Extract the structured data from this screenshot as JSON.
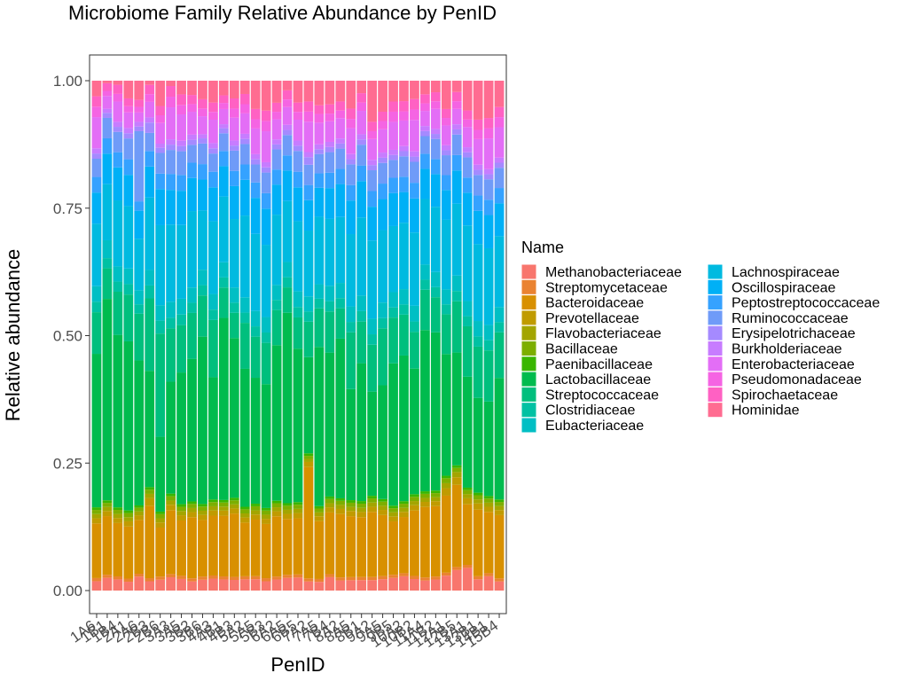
{
  "chart_data": {
    "type": "bar",
    "stacked": true,
    "title": "Microbiome Family Relative Abundance by PenID",
    "xlabel": "PenID",
    "ylabel": "Relative abundance",
    "ylim": [
      0,
      1
    ],
    "yticks": [
      "0.00",
      "0.25",
      "0.50",
      "0.75",
      "1.00"
    ],
    "grid": false,
    "legend": {
      "title": "Name",
      "placement": "right",
      "columns": 2
    },
    "categories": [
      "1A6",
      "1B1",
      "1B4",
      "2A1",
      "2A6",
      "2B3",
      "2B6",
      "3A3",
      "3A5",
      "3B2",
      "3B6",
      "4A3",
      "4B1",
      "4B3",
      "5A2",
      "5A5",
      "5B3",
      "6A2",
      "6A5",
      "6B5",
      "7A2",
      "7A5",
      "7B4",
      "8A2",
      "8A5",
      "8B1",
      "9A2",
      "9A5",
      "9B5",
      "10A2",
      "10B2",
      "11A4",
      "11B2",
      "12A1",
      "12B5",
      "13A1",
      "13B1",
      "14B1",
      "15B4"
    ],
    "series": [
      {
        "name": "Methanobacteriaceae",
        "color": "#F8766D",
        "values": [
          0.018,
          0.025,
          0.022,
          0.017,
          0.03,
          0.018,
          0.021,
          0.025,
          0.022,
          0.018,
          0.021,
          0.023,
          0.022,
          0.021,
          0.022,
          0.022,
          0.018,
          0.022,
          0.025,
          0.025,
          0.018,
          0.018,
          0.026,
          0.02,
          0.02,
          0.02,
          0.02,
          0.022,
          0.025,
          0.028,
          0.022,
          0.02,
          0.022,
          0.03,
          0.04,
          0.045,
          0.022,
          0.028,
          0.018
        ]
      },
      {
        "name": "Streptomycetaceae",
        "color": "#EA8331",
        "values": [
          0.006,
          0.006,
          0.006,
          0.006,
          0.006,
          0.006,
          0.006,
          0.006,
          0.006,
          0.006,
          0.006,
          0.006,
          0.006,
          0.006,
          0.006,
          0.006,
          0.006,
          0.006,
          0.006,
          0.006,
          0.006,
          0.006,
          0.006,
          0.006,
          0.006,
          0.006,
          0.006,
          0.006,
          0.006,
          0.006,
          0.006,
          0.006,
          0.006,
          0.006,
          0.006,
          0.006,
          0.006,
          0.006,
          0.006
        ]
      },
      {
        "name": "Bacteroidaceae",
        "color": "#D89000",
        "values": [
          0.105,
          0.115,
          0.105,
          0.1,
          0.115,
          0.14,
          0.095,
          0.12,
          0.105,
          0.12,
          0.11,
          0.115,
          0.12,
          0.125,
          0.105,
          0.11,
          0.105,
          0.12,
          0.11,
          0.108,
          0.22,
          0.12,
          0.12,
          0.125,
          0.118,
          0.115,
          0.125,
          0.118,
          0.105,
          0.11,
          0.125,
          0.14,
          0.14,
          0.155,
          0.16,
          0.12,
          0.13,
          0.12,
          0.125
        ]
      },
      {
        "name": "Prevotellaceae",
        "color": "#C09B00",
        "values": [
          0.01,
          0.01,
          0.01,
          0.01,
          0.01,
          0.015,
          0.01,
          0.01,
          0.01,
          0.01,
          0.01,
          0.01,
          0.01,
          0.01,
          0.01,
          0.01,
          0.01,
          0.01,
          0.01,
          0.01,
          0.01,
          0.01,
          0.01,
          0.01,
          0.01,
          0.01,
          0.01,
          0.01,
          0.01,
          0.01,
          0.01,
          0.01,
          0.01,
          0.015,
          0.015,
          0.012,
          0.012,
          0.01,
          0.01
        ]
      },
      {
        "name": "Flavobacteriaceae",
        "color": "#A3A500",
        "values": [
          0.008,
          0.008,
          0.008,
          0.008,
          0.008,
          0.008,
          0.008,
          0.008,
          0.008,
          0.008,
          0.008,
          0.008,
          0.008,
          0.008,
          0.008,
          0.008,
          0.008,
          0.008,
          0.008,
          0.008,
          0.006,
          0.008,
          0.008,
          0.008,
          0.008,
          0.008,
          0.008,
          0.008,
          0.008,
          0.008,
          0.008,
          0.008,
          0.008,
          0.01,
          0.01,
          0.008,
          0.008,
          0.008,
          0.008
        ]
      },
      {
        "name": "Bacillaceae",
        "color": "#7CAE00",
        "values": [
          0.008,
          0.008,
          0.008,
          0.008,
          0.008,
          0.008,
          0.008,
          0.008,
          0.008,
          0.008,
          0.008,
          0.008,
          0.008,
          0.008,
          0.008,
          0.008,
          0.008,
          0.008,
          0.008,
          0.008,
          0.006,
          0.008,
          0.008,
          0.008,
          0.008,
          0.008,
          0.008,
          0.008,
          0.008,
          0.008,
          0.008,
          0.008,
          0.008,
          0.01,
          0.008,
          0.008,
          0.008,
          0.008,
          0.008
        ]
      },
      {
        "name": "Paenibacillaceae",
        "color": "#39B600",
        "values": [
          0.005,
          0.005,
          0.005,
          0.005,
          0.005,
          0.005,
          0.005,
          0.005,
          0.005,
          0.005,
          0.005,
          0.005,
          0.005,
          0.005,
          0.005,
          0.005,
          0.005,
          0.005,
          0.005,
          0.005,
          0.005,
          0.005,
          0.005,
          0.005,
          0.005,
          0.005,
          0.005,
          0.005,
          0.005,
          0.005,
          0.005,
          0.005,
          0.005,
          0.005,
          0.005,
          0.005,
          0.005,
          0.005,
          0.005
        ]
      },
      {
        "name": "Lactobacillaceae",
        "color": "#00BB4E",
        "values": [
          0.295,
          0.395,
          0.34,
          0.325,
          0.31,
          0.225,
          0.145,
          0.21,
          0.25,
          0.28,
          0.325,
          0.235,
          0.36,
          0.315,
          0.27,
          0.245,
          0.24,
          0.31,
          0.375,
          0.295,
          0.19,
          0.33,
          0.28,
          0.315,
          0.215,
          0.265,
          0.2,
          0.22,
          0.28,
          0.285,
          0.24,
          0.32,
          0.315,
          0.245,
          0.22,
          0.22,
          0.185,
          0.185,
          0.24
        ]
      },
      {
        "name": "Streptococcaceae",
        "color": "#00BF7D",
        "values": [
          0.08,
          0.06,
          0.085,
          0.09,
          0.1,
          0.14,
          0.2,
          0.1,
          0.09,
          0.09,
          0.08,
          0.11,
          0.06,
          0.05,
          0.09,
          0.08,
          0.08,
          0.07,
          0.05,
          0.06,
          0.07,
          0.08,
          0.08,
          0.06,
          0.11,
          0.08,
          0.09,
          0.11,
          0.09,
          0.08,
          0.07,
          0.08,
          0.07,
          0.08,
          0.1,
          0.1,
          0.1,
          0.1,
          0.09
        ]
      },
      {
        "name": "Clostridiaceae",
        "color": "#00C1A3",
        "values": [
          0.02,
          0.02,
          0.02,
          0.02,
          0.02,
          0.025,
          0.025,
          0.02,
          0.02,
          0.02,
          0.02,
          0.02,
          0.02,
          0.02,
          0.02,
          0.02,
          0.02,
          0.02,
          0.02,
          0.02,
          0.02,
          0.02,
          0.02,
          0.02,
          0.02,
          0.02,
          0.02,
          0.02,
          0.02,
          0.02,
          0.02,
          0.02,
          0.02,
          0.02,
          0.02,
          0.02,
          0.02,
          0.02,
          0.02
        ]
      },
      {
        "name": "Eubacteriaceae",
        "color": "#00BFC4",
        "values": [
          0.03,
          0.035,
          0.03,
          0.03,
          0.03,
          0.03,
          0.03,
          0.03,
          0.03,
          0.03,
          0.03,
          0.03,
          0.03,
          0.03,
          0.03,
          0.03,
          0.03,
          0.03,
          0.03,
          0.03,
          0.03,
          0.03,
          0.03,
          0.03,
          0.03,
          0.03,
          0.03,
          0.03,
          0.03,
          0.03,
          0.03,
          0.03,
          0.03,
          0.03,
          0.03,
          0.03,
          0.03,
          0.03,
          0.03
        ]
      },
      {
        "name": "Lachnospiraceae",
        "color": "#00BAE0",
        "values": [
          0.12,
          0.11,
          0.13,
          0.12,
          0.11,
          0.14,
          0.155,
          0.145,
          0.14,
          0.15,
          0.115,
          0.14,
          0.13,
          0.135,
          0.16,
          0.15,
          0.14,
          0.14,
          0.12,
          0.135,
          0.13,
          0.14,
          0.13,
          0.13,
          0.14,
          0.15,
          0.15,
          0.14,
          0.13,
          0.13,
          0.14,
          0.13,
          0.13,
          0.14,
          0.14,
          0.15,
          0.15,
          0.15,
          0.14
        ]
      },
      {
        "name": "Oscillospiraceae",
        "color": "#00B0F6",
        "values": [
          0.06,
          0.06,
          0.065,
          0.06,
          0.06,
          0.06,
          0.07,
          0.065,
          0.065,
          0.065,
          0.06,
          0.065,
          0.06,
          0.065,
          0.07,
          0.07,
          0.07,
          0.06,
          0.06,
          0.065,
          0.06,
          0.06,
          0.06,
          0.065,
          0.065,
          0.07,
          0.065,
          0.06,
          0.065,
          0.06,
          0.065,
          0.06,
          0.065,
          0.06,
          0.065,
          0.065,
          0.065,
          0.065,
          0.065
        ]
      },
      {
        "name": "Peptostreptococcaceae",
        "color": "#35A2FF",
        "values": [
          0.03,
          0.03,
          0.03,
          0.03,
          0.02,
          0.03,
          0.03,
          0.03,
          0.03,
          0.03,
          0.03,
          0.03,
          0.03,
          0.03,
          0.03,
          0.03,
          0.03,
          0.03,
          0.03,
          0.03,
          0.03,
          0.03,
          0.03,
          0.03,
          0.03,
          0.03,
          0.03,
          0.03,
          0.03,
          0.03,
          0.03,
          0.03,
          0.03,
          0.03,
          0.03,
          0.03,
          0.03,
          0.03,
          0.03
        ]
      },
      {
        "name": "Ruminococcaceae",
        "color": "#6F9BF8",
        "values": [
          0.035,
          0.04,
          0.04,
          0.04,
          0.15,
          0.035,
          0.04,
          0.045,
          0.045,
          0.035,
          0.04,
          0.035,
          0.035,
          0.04,
          0.04,
          0.035,
          0.04,
          0.04,
          0.04,
          0.04,
          0.04,
          0.04,
          0.04,
          0.04,
          0.04,
          0.04,
          0.04,
          0.04,
          0.035,
          0.04,
          0.04,
          0.035,
          0.04,
          0.04,
          0.04,
          0.04,
          0.04,
          0.04,
          0.04
        ]
      },
      {
        "name": "Erysipelotrichaceae",
        "color": "#A58AFF",
        "values": [
          0.01,
          0.01,
          0.01,
          0.01,
          0.01,
          0.02,
          0.01,
          0.01,
          0.01,
          0.01,
          0.01,
          0.01,
          0.01,
          0.01,
          0.01,
          0.01,
          0.01,
          0.01,
          0.01,
          0.01,
          0.015,
          0.01,
          0.01,
          0.01,
          0.01,
          0.01,
          0.01,
          0.01,
          0.01,
          0.01,
          0.01,
          0.01,
          0.01,
          0.01,
          0.01,
          0.01,
          0.01,
          0.01,
          0.01
        ]
      },
      {
        "name": "Burkholderiaceae",
        "color": "#C77CFF",
        "values": [
          0.01,
          0.008,
          0.01,
          0.01,
          0.01,
          0.01,
          0.008,
          0.01,
          0.01,
          0.01,
          0.008,
          0.01,
          0.008,
          0.01,
          0.01,
          0.01,
          0.01,
          0.01,
          0.01,
          0.01,
          0.01,
          0.01,
          0.01,
          0.01,
          0.01,
          0.01,
          0.01,
          0.01,
          0.01,
          0.01,
          0.01,
          0.01,
          0.01,
          0.01,
          0.01,
          0.01,
          0.01,
          0.01,
          0.01
        ]
      },
      {
        "name": "Enterobacteriaceae",
        "color": "#E36EF6",
        "values": [
          0.06,
          0.025,
          0.04,
          0.03,
          0.02,
          0.03,
          0.04,
          0.06,
          0.05,
          0.045,
          0.035,
          0.045,
          0.03,
          0.045,
          0.04,
          0.05,
          0.06,
          0.04,
          0.035,
          0.04,
          0.06,
          0.045,
          0.04,
          0.04,
          0.05,
          0.045,
          0.04,
          0.045,
          0.055,
          0.05,
          0.06,
          0.03,
          0.04,
          0.04,
          0.03,
          0.04,
          0.05,
          0.06,
          0.06
        ]
      },
      {
        "name": "Pseudomonadaceae",
        "color": "#F564E3",
        "values": [
          0.02,
          0.01,
          0.015,
          0.012,
          0.012,
          0.015,
          0.015,
          0.02,
          0.018,
          0.015,
          0.015,
          0.015,
          0.012,
          0.018,
          0.018,
          0.018,
          0.02,
          0.015,
          0.015,
          0.015,
          0.02,
          0.018,
          0.015,
          0.015,
          0.018,
          0.016,
          0.015,
          0.016,
          0.02,
          0.018,
          0.02,
          0.015,
          0.015,
          0.015,
          0.015,
          0.015,
          0.018,
          0.02,
          0.02
        ]
      },
      {
        "name": "Spirochaetaceae",
        "color": "#FF61C3",
        "values": [
          0.02,
          0.015,
          0.018,
          0.015,
          0.015,
          0.018,
          0.018,
          0.02,
          0.02,
          0.018,
          0.018,
          0.018,
          0.015,
          0.02,
          0.02,
          0.02,
          0.02,
          0.018,
          0.018,
          0.018,
          0.02,
          0.018,
          0.018,
          0.018,
          0.02,
          0.018,
          0.018,
          0.018,
          0.02,
          0.02,
          0.02,
          0.018,
          0.018,
          0.018,
          0.018,
          0.018,
          0.02,
          0.02,
          0.02
        ]
      },
      {
        "name": "Hominidae",
        "color": "#FF6C91",
        "values": [
          0.03,
          0.005,
          0.008,
          0.034,
          0.041,
          0.008,
          0.049,
          0.01,
          0.026,
          0.028,
          0.036,
          0.042,
          0.029,
          0.035,
          0.026,
          0.055,
          0.058,
          0.044,
          0.019,
          0.042,
          0.041,
          0.051,
          0.046,
          0.041,
          0.054,
          0.024,
          0.079,
          0.06,
          0.041,
          0.04,
          0.035,
          0.027,
          0.023,
          0.057,
          0.022,
          0.059,
          0.076,
          0.073,
          0.052
        ]
      }
    ]
  }
}
